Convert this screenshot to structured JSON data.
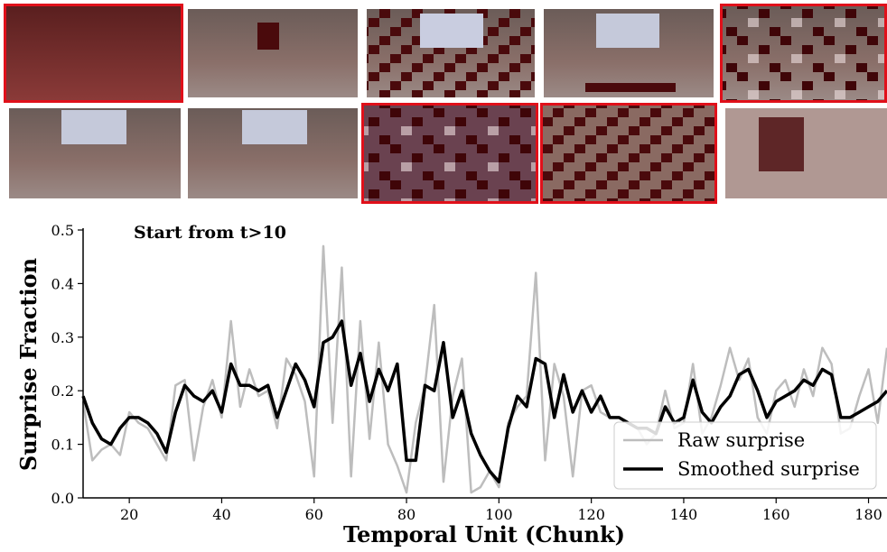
{
  "chart_data": {
    "type": "line",
    "annotation": "Start from t>10",
    "xlabel": "Temporal Unit (Chunk)",
    "ylabel": "Surprise Fraction",
    "x": [
      10,
      12,
      14,
      16,
      18,
      20,
      22,
      24,
      26,
      28,
      30,
      32,
      34,
      36,
      38,
      40,
      42,
      44,
      46,
      48,
      50,
      52,
      54,
      56,
      58,
      60,
      62,
      64,
      66,
      68,
      70,
      72,
      74,
      76,
      78,
      80,
      82,
      84,
      86,
      88,
      90,
      92,
      94,
      96,
      98,
      100,
      102,
      104,
      106,
      108,
      110,
      112,
      114,
      116,
      118,
      120,
      122,
      124,
      126,
      128,
      130,
      132,
      134,
      136,
      138,
      140,
      142,
      144,
      146,
      148,
      150,
      152,
      154,
      156,
      158,
      160,
      162,
      164,
      166,
      168,
      170,
      172,
      174,
      176,
      178,
      180,
      182,
      184
    ],
    "series": [
      {
        "name": "Raw surprise",
        "color": "#bdbdbd",
        "width": 2.5,
        "values": [
          0.18,
          0.07,
          0.09,
          0.1,
          0.08,
          0.16,
          0.14,
          0.13,
          0.1,
          0.07,
          0.21,
          0.22,
          0.07,
          0.17,
          0.22,
          0.15,
          0.33,
          0.17,
          0.24,
          0.19,
          0.2,
          0.13,
          0.26,
          0.23,
          0.18,
          0.04,
          0.47,
          0.14,
          0.43,
          0.04,
          0.33,
          0.11,
          0.29,
          0.1,
          0.06,
          0.01,
          0.14,
          0.21,
          0.36,
          0.03,
          0.19,
          0.26,
          0.01,
          0.02,
          0.05,
          0.02,
          0.14,
          0.17,
          0.19,
          0.42,
          0.07,
          0.25,
          0.19,
          0.04,
          0.2,
          0.21,
          0.16,
          0.15,
          0.15,
          0.14,
          0.13,
          0.1,
          0.12,
          0.2,
          0.13,
          0.14,
          0.25,
          0.12,
          0.15,
          0.21,
          0.28,
          0.22,
          0.26,
          0.15,
          0.12,
          0.2,
          0.22,
          0.17,
          0.24,
          0.19,
          0.28,
          0.25,
          0.12,
          0.13,
          0.19,
          0.24,
          0.14,
          0.28
        ]
      },
      {
        "name": "Smoothed surprise",
        "color": "#000000",
        "width": 3.5,
        "values": [
          0.19,
          0.14,
          0.11,
          0.1,
          0.13,
          0.15,
          0.15,
          0.14,
          0.12,
          0.085,
          0.16,
          0.21,
          0.19,
          0.18,
          0.2,
          0.16,
          0.25,
          0.21,
          0.21,
          0.2,
          0.21,
          0.15,
          0.2,
          0.25,
          0.22,
          0.17,
          0.29,
          0.3,
          0.33,
          0.21,
          0.27,
          0.18,
          0.24,
          0.2,
          0.25,
          0.07,
          0.07,
          0.21,
          0.2,
          0.29,
          0.15,
          0.2,
          0.12,
          0.08,
          0.05,
          0.03,
          0.13,
          0.19,
          0.17,
          0.26,
          0.25,
          0.15,
          0.23,
          0.16,
          0.2,
          0.16,
          0.19,
          0.15,
          0.15,
          0.14,
          0.13,
          0.13,
          0.12,
          0.17,
          0.14,
          0.15,
          0.22,
          0.16,
          0.14,
          0.17,
          0.19,
          0.23,
          0.24,
          0.2,
          0.15,
          0.18,
          0.19,
          0.2,
          0.22,
          0.21,
          0.24,
          0.23,
          0.15,
          0.15,
          0.16,
          0.17,
          0.18,
          0.2
        ]
      }
    ],
    "xlim": [
      10,
      184
    ],
    "ylim": [
      0,
      0.5
    ],
    "xticks": [
      20,
      40,
      60,
      80,
      100,
      120,
      140,
      160,
      180
    ],
    "yticks": [
      {
        "value": 0,
        "label": "0.0"
      },
      0.1,
      0.2,
      0.3,
      0.4,
      0.5
    ],
    "legend": "lower right"
  }
}
